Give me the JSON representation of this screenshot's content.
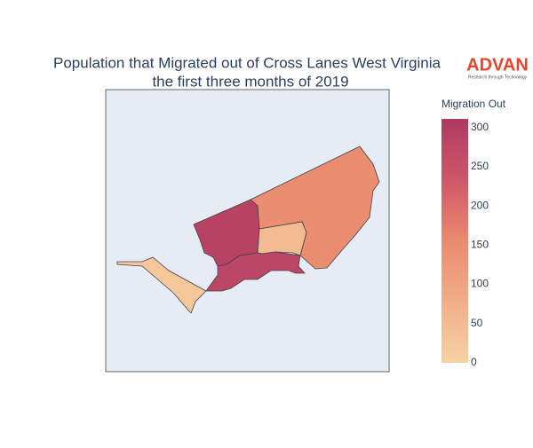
{
  "chart_data": {
    "type": "choropleth",
    "title": "Population that Migrated out of Cross Lanes West Virginia",
    "subtitle": "the first three months of 2019",
    "logo": "ADVAN",
    "logo_tagline": "Research through Technology",
    "colorbar_title": "Migration Out",
    "values": [
      150,
      290,
      50,
      280,
      25
    ],
    "zlim": [
      0,
      311
    ],
    "zticks": [
      0,
      50,
      100,
      150,
      200,
      250,
      300
    ],
    "colorscale": [
      [
        0,
        "#f6d2a2"
      ],
      [
        0.5,
        "#ea8a6f"
      ],
      [
        0.75,
        "#cf5768"
      ],
      [
        1,
        "#ae3a63"
      ]
    ]
  }
}
